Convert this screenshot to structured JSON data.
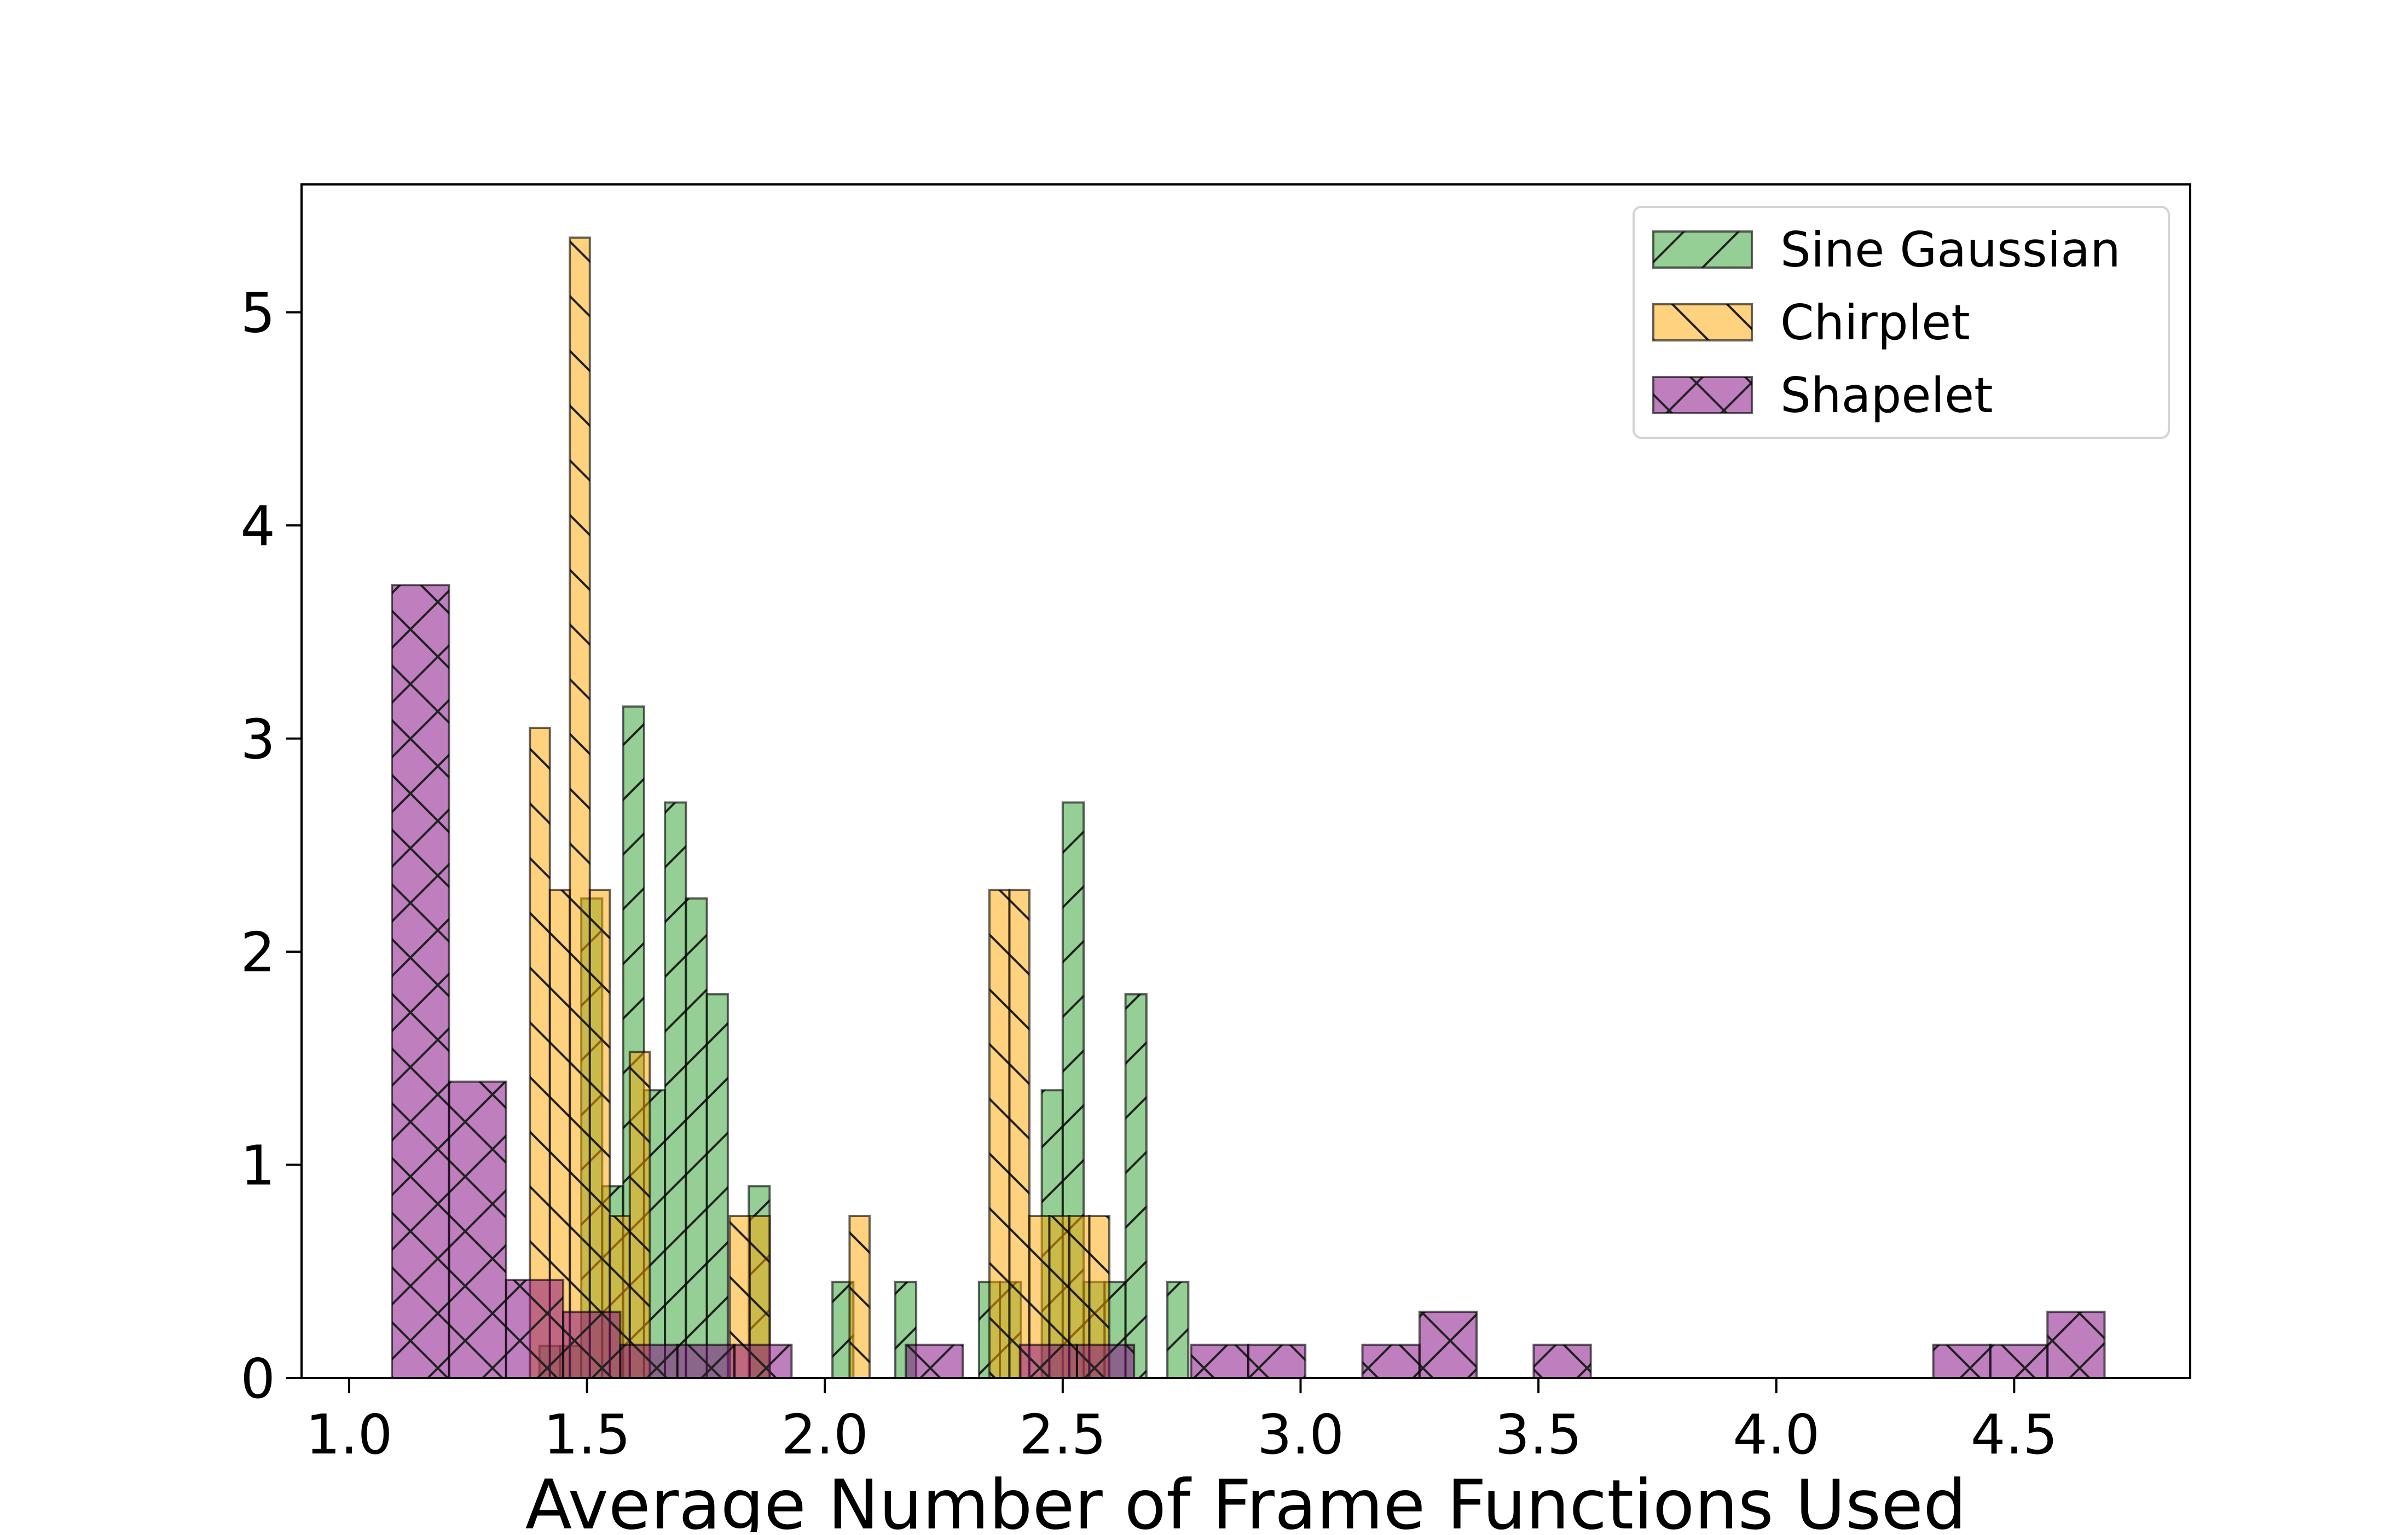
{
  "chart_data": {
    "type": "bar",
    "subtype": "overlapping-histogram",
    "title": "",
    "xlabel": "Average Number of Frame Functions Used",
    "ylabel": "",
    "xlim": [
      0.9,
      4.87
    ],
    "ylim": [
      0,
      5.6
    ],
    "xticks": [
      1.0,
      1.5,
      2.0,
      2.5,
      3.0,
      3.5,
      4.0,
      4.5
    ],
    "xtick_labels": [
      "1.0",
      "1.5",
      "2.0",
      "2.5",
      "3.0",
      "3.5",
      "4.0",
      "4.5"
    ],
    "yticks": [
      0,
      1,
      2,
      3,
      4,
      5
    ],
    "ytick_labels": [
      "0",
      "1",
      "2",
      "3",
      "4",
      "5"
    ],
    "grid": false,
    "legend_position": "top-right",
    "series": [
      {
        "name": "Sine Gaussian",
        "color": "#2ca02c",
        "hatch": "/",
        "bins": [
          {
            "x0": 1.4,
            "x1": 1.444,
            "value": 0.15
          },
          {
            "x0": 1.444,
            "x1": 1.488,
            "value": 0.15
          },
          {
            "x0": 1.488,
            "x1": 1.532,
            "value": 2.25
          },
          {
            "x0": 1.532,
            "x1": 1.576,
            "value": 0.9
          },
          {
            "x0": 1.576,
            "x1": 1.62,
            "value": 3.15
          },
          {
            "x0": 1.62,
            "x1": 1.664,
            "value": 1.35
          },
          {
            "x0": 1.664,
            "x1": 1.708,
            "value": 2.7
          },
          {
            "x0": 1.708,
            "x1": 1.752,
            "value": 2.25
          },
          {
            "x0": 1.752,
            "x1": 1.796,
            "value": 1.8
          },
          {
            "x0": 1.84,
            "x1": 1.884,
            "value": 0.9
          },
          {
            "x0": 2.016,
            "x1": 2.06,
            "value": 0.45
          },
          {
            "x0": 2.148,
            "x1": 2.192,
            "value": 0.45
          },
          {
            "x0": 2.324,
            "x1": 2.368,
            "value": 0.45
          },
          {
            "x0": 2.368,
            "x1": 2.412,
            "value": 0.45
          },
          {
            "x0": 2.456,
            "x1": 2.5,
            "value": 1.35
          },
          {
            "x0": 2.5,
            "x1": 2.544,
            "value": 2.7
          },
          {
            "x0": 2.544,
            "x1": 2.588,
            "value": 0.45
          },
          {
            "x0": 2.588,
            "x1": 2.632,
            "value": 0.45
          },
          {
            "x0": 2.632,
            "x1": 2.676,
            "value": 1.8
          },
          {
            "x0": 2.72,
            "x1": 2.764,
            "value": 0.45
          }
        ]
      },
      {
        "name": "Chirplet",
        "color": "#ffa500",
        "hatch": "\\",
        "bins": [
          {
            "x0": 1.38,
            "x1": 1.422,
            "value": 3.05
          },
          {
            "x0": 1.422,
            "x1": 1.464,
            "value": 2.29
          },
          {
            "x0": 1.464,
            "x1": 1.506,
            "value": 5.35
          },
          {
            "x0": 1.506,
            "x1": 1.548,
            "value": 2.29
          },
          {
            "x0": 1.548,
            "x1": 1.59,
            "value": 0.76
          },
          {
            "x0": 1.59,
            "x1": 1.632,
            "value": 1.53
          },
          {
            "x0": 1.8,
            "x1": 1.842,
            "value": 0.76
          },
          {
            "x0": 1.842,
            "x1": 1.884,
            "value": 0.76
          },
          {
            "x0": 2.052,
            "x1": 2.094,
            "value": 0.76
          },
          {
            "x0": 2.346,
            "x1": 2.388,
            "value": 2.29
          },
          {
            "x0": 2.388,
            "x1": 2.43,
            "value": 2.29
          },
          {
            "x0": 2.43,
            "x1": 2.472,
            "value": 0.76
          },
          {
            "x0": 2.472,
            "x1": 2.514,
            "value": 0.76
          },
          {
            "x0": 2.514,
            "x1": 2.556,
            "value": 0.76
          },
          {
            "x0": 2.556,
            "x1": 2.598,
            "value": 0.76
          }
        ]
      },
      {
        "name": "Shapelet",
        "color": "#800080",
        "hatch": "x",
        "bins": [
          {
            "x0": 1.09,
            "x1": 1.21,
            "value": 3.72
          },
          {
            "x0": 1.21,
            "x1": 1.33,
            "value": 1.39
          },
          {
            "x0": 1.33,
            "x1": 1.45,
            "value": 0.46
          },
          {
            "x0": 1.45,
            "x1": 1.57,
            "value": 0.31
          },
          {
            "x0": 1.57,
            "x1": 1.69,
            "value": 0.155
          },
          {
            "x0": 1.69,
            "x1": 1.81,
            "value": 0.155
          },
          {
            "x0": 1.81,
            "x1": 1.93,
            "value": 0.155
          },
          {
            "x0": 2.17,
            "x1": 2.29,
            "value": 0.155
          },
          {
            "x0": 2.41,
            "x1": 2.53,
            "value": 0.155
          },
          {
            "x0": 2.53,
            "x1": 2.65,
            "value": 0.155
          },
          {
            "x0": 2.77,
            "x1": 2.89,
            "value": 0.155
          },
          {
            "x0": 2.89,
            "x1": 3.01,
            "value": 0.155
          },
          {
            "x0": 3.13,
            "x1": 3.25,
            "value": 0.155
          },
          {
            "x0": 3.25,
            "x1": 3.37,
            "value": 0.31
          },
          {
            "x0": 3.49,
            "x1": 3.61,
            "value": 0.155
          },
          {
            "x0": 4.33,
            "x1": 4.45,
            "value": 0.155
          },
          {
            "x0": 4.45,
            "x1": 4.57,
            "value": 0.155
          },
          {
            "x0": 4.57,
            "x1": 4.69,
            "value": 0.31
          }
        ]
      }
    ]
  }
}
